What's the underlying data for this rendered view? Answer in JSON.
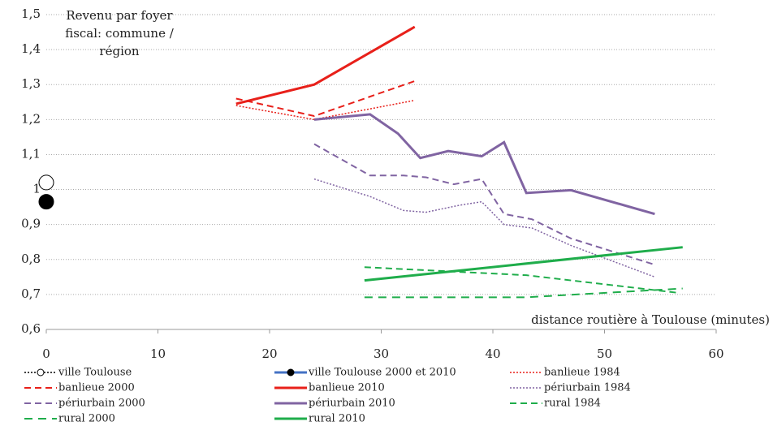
{
  "chart_data": {
    "type": "line",
    "ylabel": "Revenu par foyer fiscal:  commune / région",
    "xlabel": "distance routière à Toulouse (minutes)",
    "xlim": [
      0,
      60
    ],
    "xticks": [
      0,
      10,
      20,
      30,
      40,
      50,
      60
    ],
    "ylim": [
      0.6,
      1.5
    ],
    "yticks": [
      {
        "value": 0.6,
        "label": "0,6"
      },
      {
        "value": 0.7,
        "label": "0,7"
      },
      {
        "value": 0.8,
        "label": "0,8"
      },
      {
        "value": 0.9,
        "label": "0,9"
      },
      1,
      {
        "value": 1.1,
        "label": "1,1"
      },
      {
        "value": 1.2,
        "label": "1,2"
      },
      {
        "value": 1.3,
        "label": "1,3"
      },
      {
        "value": 1.4,
        "label": "1,4"
      },
      {
        "value": 1.5,
        "label": "1,5"
      }
    ],
    "grid": true,
    "series": [
      {
        "name": "ville Toulouse",
        "color": "#000000",
        "dash": "dotted",
        "marker": "open",
        "x": [
          0
        ],
        "values": [
          1.02
        ]
      },
      {
        "name": "ville Toulouse 2000 et 2010",
        "color": "#4472c4",
        "dash": "solid",
        "marker": "filled",
        "x": [
          0
        ],
        "values": [
          0.965
        ]
      },
      {
        "name": "banlieue 1984",
        "color": "#e8201a",
        "dash": "dotted",
        "x": [
          17,
          24,
          33
        ],
        "values": [
          1.24,
          1.2,
          1.255
        ]
      },
      {
        "name": "banlieue 2000",
        "color": "#e8201a",
        "dash": "dashed",
        "x": [
          17,
          24,
          33
        ],
        "values": [
          1.26,
          1.21,
          1.31
        ]
      },
      {
        "name": "banlieue 2010",
        "color": "#e8201a",
        "dash": "solid",
        "x": [
          17,
          24,
          33
        ],
        "values": [
          1.245,
          1.3,
          1.465
        ]
      },
      {
        "name": "périurbain 1984",
        "color": "#8064a2",
        "dash": "dotted",
        "x": [
          24,
          29,
          32,
          34,
          37,
          39,
          41,
          43.5,
          47,
          54.5
        ],
        "values": [
          1.03,
          0.98,
          0.94,
          0.935,
          0.955,
          0.965,
          0.9,
          0.89,
          0.84,
          0.75
        ]
      },
      {
        "name": "périurbain 2000",
        "color": "#8064a2",
        "dash": "dashed",
        "x": [
          24,
          29,
          32,
          34,
          36.5,
          39,
          41,
          43.5,
          47,
          54.5
        ],
        "values": [
          1.13,
          1.04,
          1.04,
          1.035,
          1.015,
          1.03,
          0.93,
          0.915,
          0.86,
          0.785
        ]
      },
      {
        "name": "périurbain 2010",
        "color": "#8064a2",
        "dash": "solid",
        "x": [
          24,
          29,
          31.5,
          33.5,
          36,
          39,
          41,
          43,
          47,
          54.5
        ],
        "values": [
          1.2,
          1.215,
          1.16,
          1.09,
          1.11,
          1.095,
          1.135,
          0.99,
          0.998,
          0.93
        ]
      },
      {
        "name": "rural 1984",
        "color": "#1fad4b",
        "dash": "dashed",
        "x": [
          28.5,
          43,
          56.5
        ],
        "values": [
          0.778,
          0.755,
          0.705
        ]
      },
      {
        "name": "rural 2000",
        "color": "#1fad4b",
        "dash": "longdash",
        "x": [
          28.5,
          43,
          57
        ],
        "values": [
          0.692,
          0.692,
          0.717
        ]
      },
      {
        "name": "rural 2010",
        "color": "#1fad4b",
        "dash": "solid",
        "x": [
          28.5,
          57
        ],
        "values": [
          0.74,
          0.835
        ]
      }
    ]
  }
}
